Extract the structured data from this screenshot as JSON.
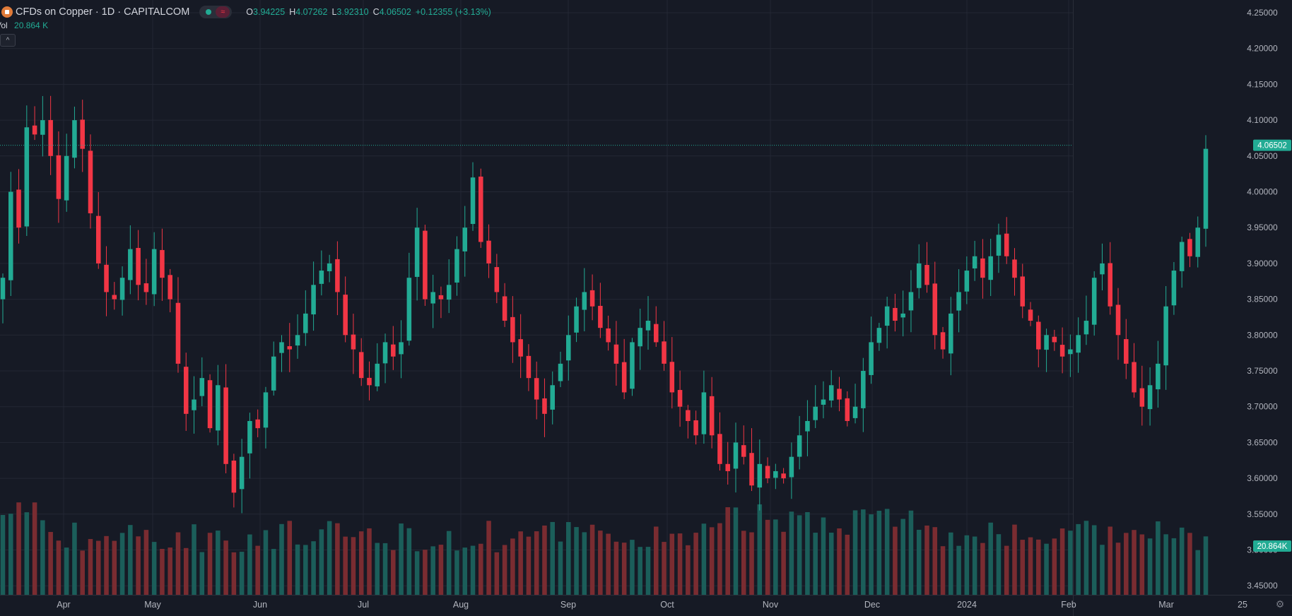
{
  "legend": {
    "symbol": "CFDs on Copper · 1D · CAPITALCOM",
    "wave_icon": "≈",
    "o_label": "O",
    "o_value": "3.94225",
    "h_label": "H",
    "h_value": "4.07262",
    "l_label": "L",
    "l_value": "3.92310",
    "c_label": "C",
    "c_value": "4.06502",
    "change": "+0.12355 (+3.13%)"
  },
  "volume": {
    "label": "Vol",
    "value": "20.864 K",
    "badge": "20.864K"
  },
  "collapse_icon": "^",
  "settings_icon": "⚙",
  "colors": {
    "up": "#22ab94",
    "down": "#f23645",
    "up_vol": "#1b5e5a",
    "down_vol": "#7a2c31",
    "background": "#161a25",
    "grid": "#232734"
  },
  "chart_data": {
    "type": "candlestick",
    "interval": "1D",
    "y_ticks": [
      "4.25000",
      "4.20000",
      "4.15000",
      "4.10000",
      "4.05000",
      "4.00000",
      "3.95000",
      "3.90000",
      "3.85000",
      "3.80000",
      "3.75000",
      "3.70000",
      "3.65000",
      "3.60000",
      "3.55000",
      "3.50000",
      "3.45000"
    ],
    "ylim": [
      3.44,
      4.26
    ],
    "x_ticks": [
      "Apr",
      "May",
      "Jun",
      "Jul",
      "Aug",
      "Sep",
      "Oct",
      "Nov",
      "Dec",
      "2024",
      "Feb",
      "Mar",
      "25"
    ],
    "last_price": "4.06502",
    "close_series": [
      3.88,
      4.0,
      3.95,
      4.09,
      4.08,
      4.1,
      4.05,
      3.99,
      4.05,
      4.1,
      4.06,
      3.97,
      3.9,
      3.86,
      3.85,
      3.88,
      3.92,
      3.87,
      3.86,
      3.92,
      3.88,
      3.85,
      3.76,
      3.69,
      3.71,
      3.74,
      3.67,
      3.73,
      3.62,
      3.58,
      3.63,
      3.68,
      3.67,
      3.72,
      3.77,
      3.79,
      3.78,
      3.8,
      3.83,
      3.87,
      3.89,
      3.9,
      3.86,
      3.8,
      3.78,
      3.74,
      3.73,
      3.76,
      3.79,
      3.77,
      3.79,
      3.88,
      3.95,
      3.85,
      3.86,
      3.85,
      3.87,
      3.92,
      3.95,
      4.02,
      3.93,
      3.9,
      3.86,
      3.82,
      3.79,
      3.77,
      3.74,
      3.71,
      3.69,
      3.73,
      3.76,
      3.8,
      3.84,
      3.86,
      3.84,
      3.81,
      3.79,
      3.76,
      3.72,
      3.79,
      3.81,
      3.82,
      3.79,
      3.76,
      3.72,
      3.7,
      3.68,
      3.66,
      3.72,
      3.66,
      3.62,
      3.61,
      3.65,
      3.63,
      3.59,
      3.62,
      3.6,
      3.61,
      3.6,
      3.63,
      3.66,
      3.68,
      3.7,
      3.71,
      3.73,
      3.71,
      3.68,
      3.7,
      3.75,
      3.79,
      3.81,
      3.84,
      3.82,
      3.83,
      3.86,
      3.9,
      3.87,
      3.8,
      3.78,
      3.83,
      3.86,
      3.89,
      3.91,
      3.88,
      3.91,
      3.94,
      3.91,
      3.88,
      3.84,
      3.82,
      3.78,
      3.8,
      3.79,
      3.77,
      3.78,
      3.8,
      3.82,
      3.88,
      3.9,
      3.84,
      3.8,
      3.76,
      3.72,
      3.7,
      3.73,
      3.76,
      3.84,
      3.89,
      3.93,
      3.91,
      3.95,
      4.06
    ]
  }
}
